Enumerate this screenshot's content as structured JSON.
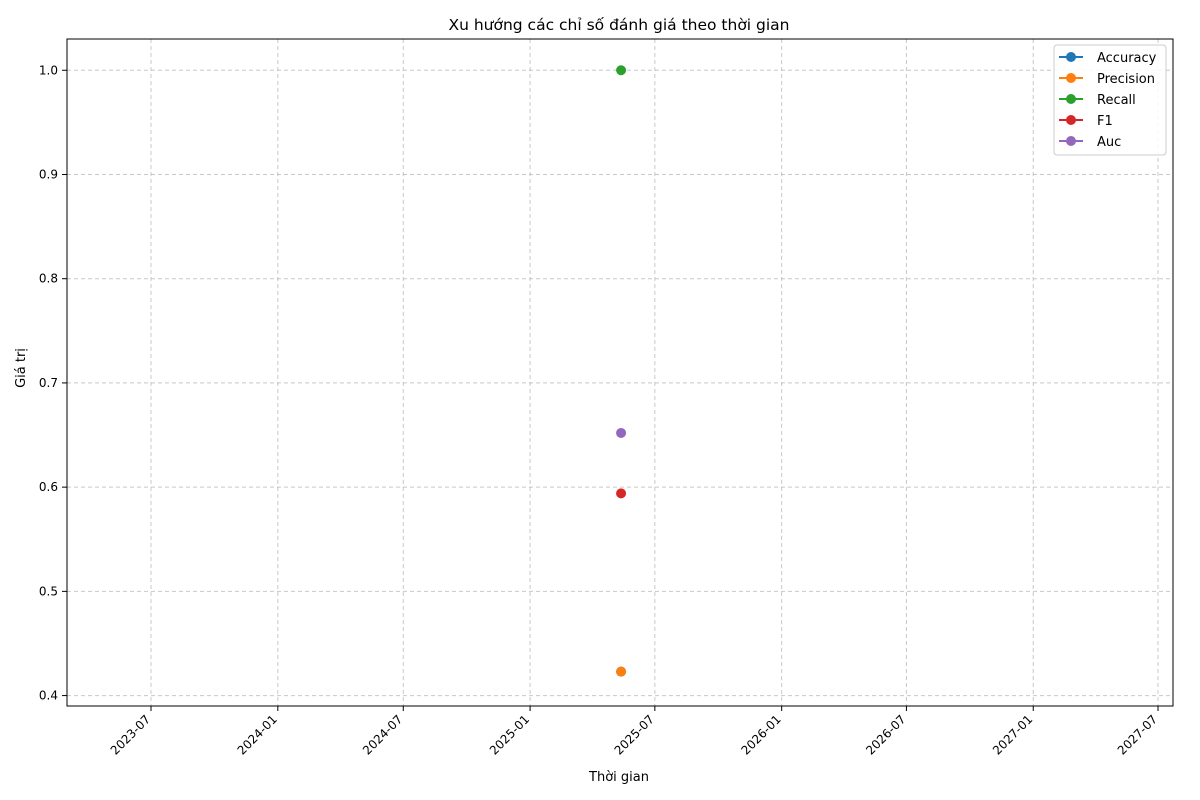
{
  "chart_data": {
    "type": "line",
    "title": "Xu hướng các chỉ số đánh giá theo thời gian",
    "xlabel": "Thời gian",
    "ylabel": "Giá trị",
    "x_tick_labels": [
      "2023-07",
      "2024-01",
      "2024-07",
      "2025-01",
      "2025-07",
      "2026-01",
      "2026-07",
      "2027-01",
      "2027-07"
    ],
    "y_ticks": [
      0.4,
      0.5,
      0.6,
      0.7,
      0.8,
      0.9,
      1.0
    ],
    "y_tick_labels": [
      "0.4",
      "0.5",
      "0.6",
      "0.7",
      "0.8",
      "0.9",
      "1.0"
    ],
    "ylim": [
      0.39,
      1.03
    ],
    "grid": true,
    "legend_position": "top-right",
    "x_point": "2025-05-13",
    "series": [
      {
        "name": "Accuracy",
        "color": "#1f77b4",
        "values": [
          0.423
        ]
      },
      {
        "name": "Precision",
        "color": "#ff7f0e",
        "values": [
          0.423
        ]
      },
      {
        "name": "Recall",
        "color": "#2ca02c",
        "values": [
          1.0
        ]
      },
      {
        "name": "F1",
        "color": "#d62728",
        "values": [
          0.594
        ]
      },
      {
        "name": "Auc",
        "color": "#9467bd",
        "values": [
          0.652
        ]
      }
    ]
  }
}
